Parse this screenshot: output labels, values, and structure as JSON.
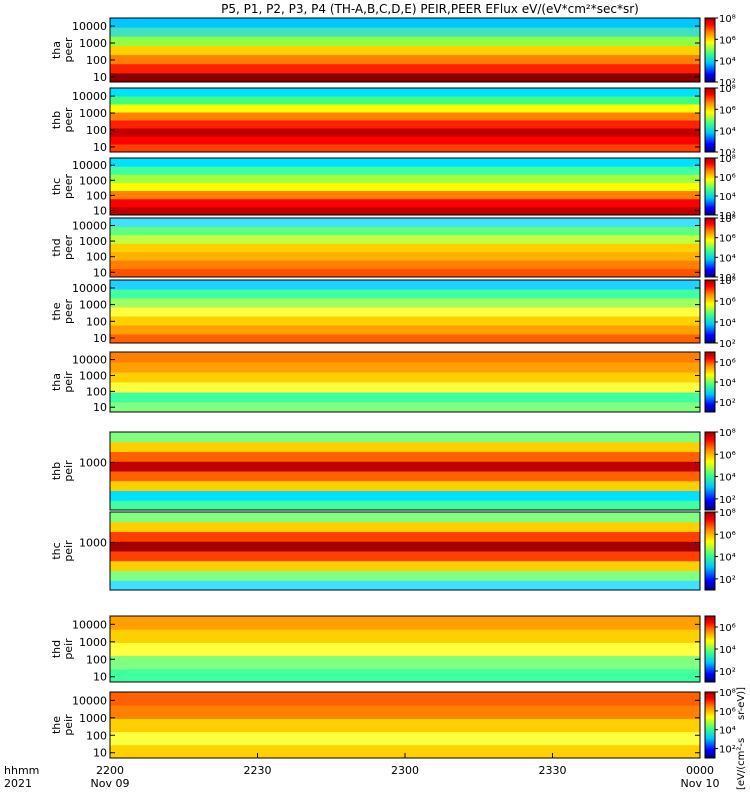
{
  "title": "P5, P1, P2, P3, P4 (TH-A,B,C,D,E) PEIR,PEER EFlux eV/(eV*cm²*sec*sr)",
  "colorbar_unit_eflux": "eV/(eV*cm²*sec*sr)",
  "colorbar_unit_main": "[eV/(cm²-s",
  "colorbar_unit_wrap": "sr-eV)]",
  "x_axis": {
    "row1_label": "hhmm",
    "row2_label": "2021",
    "ticks": [
      {
        "time": "2200",
        "date": "Nov 09",
        "minutes": 0
      },
      {
        "time": "2230",
        "date": "",
        "minutes": 30
      },
      {
        "time": "2300",
        "date": "",
        "minutes": 60
      },
      {
        "time": "2330",
        "date": "",
        "minutes": 90
      },
      {
        "time": "0000",
        "date": "Nov 10",
        "minutes": 120
      }
    ],
    "range_minutes": [
      0,
      120
    ]
  },
  "chart_data": [
    {
      "type": "heatmap",
      "probe": "tha",
      "species": "peer",
      "ylabel": "tha peer",
      "yticks": [
        "10",
        "100",
        "1000",
        "10000"
      ],
      "ylim": [
        5,
        30000
      ],
      "ylog": true,
      "colorbar_ticks": [
        "10²",
        "10⁴",
        "10⁶",
        "10⁸"
      ],
      "colorbar_range": [
        100,
        100000000
      ]
    },
    {
      "type": "heatmap",
      "probe": "thb",
      "species": "peer",
      "ylabel": "thb peer",
      "yticks": [
        "10",
        "100",
        "1000",
        "10000"
      ],
      "ylim": [
        5,
        30000
      ],
      "ylog": true,
      "colorbar_ticks": [
        "10²",
        "10⁴",
        "10⁶",
        "10⁸"
      ],
      "colorbar_range": [
        100,
        100000000
      ]
    },
    {
      "type": "heatmap",
      "probe": "thc",
      "species": "peer",
      "ylabel": "thc peer",
      "yticks": [
        "10",
        "100",
        "1000",
        "10000"
      ],
      "ylim": [
        5,
        30000
      ],
      "ylog": true,
      "colorbar_ticks": [
        "10²",
        "10⁴",
        "10⁶",
        "10⁸"
      ],
      "colorbar_range": [
        100,
        100000000
      ]
    },
    {
      "type": "heatmap",
      "probe": "thd",
      "species": "peer",
      "ylabel": "thd peer",
      "yticks": [
        "10",
        "100",
        "1000",
        "10000"
      ],
      "ylim": [
        5,
        30000
      ],
      "ylog": true,
      "colorbar_ticks": [
        "10²",
        "10⁴",
        "10⁶",
        "10⁸"
      ],
      "colorbar_range": [
        100,
        100000000
      ]
    },
    {
      "type": "heatmap",
      "probe": "the",
      "species": "peer",
      "ylabel": "the peer",
      "yticks": [
        "10",
        "100",
        "1000",
        "10000"
      ],
      "ylim": [
        5,
        30000
      ],
      "ylog": true,
      "colorbar_ticks": [
        "10²",
        "10⁴",
        "10⁶",
        "10⁸"
      ],
      "colorbar_range": [
        100,
        100000000
      ]
    },
    {
      "type": "heatmap",
      "probe": "tha",
      "species": "peir",
      "ylabel": "tha peir",
      "yticks": [
        "10",
        "100",
        "1000",
        "10000"
      ],
      "ylim": [
        5,
        30000
      ],
      "ylog": true,
      "colorbar_ticks": [
        "10²",
        "10⁴",
        "10⁶"
      ],
      "colorbar_range": [
        10,
        10000000
      ]
    },
    {
      "type": "heatmap",
      "probe": "thb",
      "species": "peir",
      "ylabel": "thb peir",
      "yticks": [
        "1000"
      ],
      "ylim": [
        5,
        30000
      ],
      "ylog": true,
      "colorbar_ticks": [
        "10²",
        "10⁴",
        "10⁶",
        "10⁸"
      ],
      "colorbar_range": [
        10,
        100000000
      ]
    },
    {
      "type": "heatmap",
      "probe": "thc",
      "species": "peir",
      "ylabel": "thc peir",
      "yticks": [
        "1000"
      ],
      "ylim": [
        5,
        30000
      ],
      "ylog": true,
      "colorbar_ticks": [
        "10²",
        "10⁴",
        "10⁶",
        "10⁸"
      ],
      "colorbar_range": [
        10,
        100000000
      ]
    },
    {
      "type": "heatmap",
      "probe": "thd",
      "species": "peir",
      "ylabel": "thd peir",
      "yticks": [
        "10",
        "100",
        "1000",
        "10000"
      ],
      "ylim": [
        5,
        30000
      ],
      "ylog": true,
      "colorbar_ticks": [
        "10²",
        "10⁴",
        "10⁶"
      ],
      "colorbar_range": [
        10,
        10000000
      ]
    },
    {
      "type": "heatmap",
      "probe": "the",
      "species": "peir",
      "ylabel": "the peir",
      "yticks": [
        "10",
        "100",
        "1000",
        "10000"
      ],
      "ylim": [
        5,
        30000
      ],
      "ylog": true,
      "colorbar_ticks": [
        "10²",
        "10⁴",
        "10⁶",
        "10⁸"
      ],
      "colorbar_range": [
        10,
        100000000
      ]
    }
  ]
}
